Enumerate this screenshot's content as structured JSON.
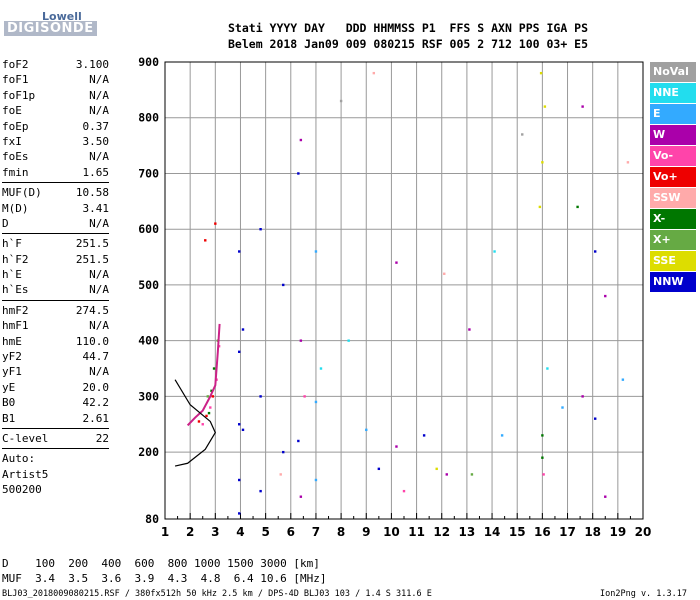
{
  "logo": {
    "top": "Lowell",
    "main": "DIGISONDE"
  },
  "header": {
    "line1": "Stati YYYY DAY   DDD HHMMSS P1  FFS S AXN PPS IGA PS",
    "line2": "Belem 2018 Jan09 009 080215 RSF 005 2 712 100 03+ E5"
  },
  "params": [
    {
      "name": "foF2",
      "value": "3.100"
    },
    {
      "name": "foF1",
      "value": "N/A"
    },
    {
      "name": "foF1p",
      "value": "N/A"
    },
    {
      "name": "foE",
      "value": "N/A"
    },
    {
      "name": "foEp",
      "value": "0.37"
    },
    {
      "name": "fxI",
      "value": "3.50"
    },
    {
      "name": "foEs",
      "value": "N/A"
    },
    {
      "name": "fmin",
      "value": "1.65"
    },
    {
      "sep": true
    },
    {
      "name": "MUF(D)",
      "value": "10.58"
    },
    {
      "name": "M(D)",
      "value": "3.41"
    },
    {
      "name": "D",
      "value": "N/A"
    },
    {
      "sep": true
    },
    {
      "name": "h`F",
      "value": "251.5"
    },
    {
      "name": "h`F2",
      "value": "251.5"
    },
    {
      "name": "h`E",
      "value": "N/A"
    },
    {
      "name": "h`Es",
      "value": "N/A"
    },
    {
      "sep": true
    },
    {
      "name": "hmF2",
      "value": "274.5"
    },
    {
      "name": "hmF1",
      "value": "N/A"
    },
    {
      "name": "hmE",
      "value": "110.0"
    },
    {
      "name": "yF2",
      "value": "44.7"
    },
    {
      "name": "yF1",
      "value": "N/A"
    },
    {
      "name": "yE",
      "value": "20.0"
    },
    {
      "name": "B0",
      "value": "42.2"
    },
    {
      "name": "B1",
      "value": "2.61"
    },
    {
      "sep": true
    },
    {
      "name": "C-level",
      "value": "22"
    },
    {
      "sep": true
    },
    {
      "text": "Auto:"
    },
    {
      "text": "Artist5"
    },
    {
      "text": "500200"
    }
  ],
  "legend": [
    {
      "label": "NoVal",
      "color": "#a0a0a0"
    },
    {
      "label": "NNE",
      "color": "#22ddee"
    },
    {
      "label": "E",
      "color": "#33aaff"
    },
    {
      "label": "W",
      "color": "#aa00aa"
    },
    {
      "label": "Vo-",
      "color": "#ff44aa"
    },
    {
      "label": "Vo+",
      "color": "#ee0000"
    },
    {
      "label": "SSW",
      "color": "#ffaaaa"
    },
    {
      "label": "X-",
      "color": "#007700"
    },
    {
      "label": "X+",
      "color": "#66aa44"
    },
    {
      "label": "SSE",
      "color": "#dddd00"
    },
    {
      "label": "NNW",
      "color": "#0000cc"
    }
  ],
  "muf_table": {
    "row1": "D    100  200  400  600  800 1000 1500 3000 [km]",
    "row2": "MUF  3.4  3.5  3.6  3.9  4.3  4.8  6.4 10.6 [MHz]"
  },
  "footer": {
    "left": "BLJ03_2018009080215.RSF / 380fx512h 50 kHz 2.5 km / DPS-4D BLJ03 103 / 1.4 S 311.6 E",
    "right": "Ion2Png v. 1.3.17"
  },
  "chart_data": {
    "type": "scatter",
    "title": "",
    "xlabel": "",
    "ylabel": "",
    "x_ticks": [
      "1",
      "2",
      "3",
      "4",
      "5",
      "6",
      "7",
      "8",
      "9",
      "10",
      "11",
      "12",
      "13",
      "14",
      "15",
      "16",
      "17",
      "18",
      "19",
      "20"
    ],
    "y_ticks": [
      "80",
      "200",
      "300",
      "400",
      "500",
      "600",
      "700",
      "800",
      "900"
    ],
    "xlim": [
      1,
      20
    ],
    "ylim": [
      80,
      900
    ],
    "grid": true,
    "series": [
      {
        "name": "NNW",
        "color": "#0000cc",
        "points": [
          [
            3.95,
            90
          ],
          [
            3.95,
            150
          ],
          [
            3.95,
            250
          ],
          [
            3.95,
            380
          ],
          [
            3.95,
            560
          ],
          [
            4.8,
            130
          ],
          [
            4.8,
            300
          ],
          [
            4.8,
            600
          ],
          [
            4.1,
            240
          ],
          [
            4.1,
            420
          ],
          [
            5.7,
            200
          ],
          [
            5.7,
            500
          ],
          [
            6.3,
            220
          ],
          [
            6.3,
            700
          ],
          [
            9.5,
            170
          ],
          [
            11.3,
            230
          ],
          [
            18.1,
            260
          ],
          [
            18.1,
            560
          ]
        ]
      },
      {
        "name": "W",
        "color": "#aa00aa",
        "points": [
          [
            6.4,
            120
          ],
          [
            6.4,
            400
          ],
          [
            6.4,
            760
          ],
          [
            10.2,
            210
          ],
          [
            10.2,
            540
          ],
          [
            12.2,
            160
          ],
          [
            13.1,
            420
          ],
          [
            17.6,
            300
          ],
          [
            17.6,
            820
          ],
          [
            18.5,
            120
          ],
          [
            18.5,
            480
          ]
        ]
      },
      {
        "name": "SSE",
        "color": "#dddd00",
        "points": [
          [
            15.9,
            640
          ],
          [
            16.0,
            720
          ],
          [
            16.1,
            820
          ],
          [
            15.95,
            880
          ],
          [
            11.8,
            170
          ]
        ]
      },
      {
        "name": "E",
        "color": "#33aaff",
        "points": [
          [
            7.0,
            150
          ],
          [
            7.0,
            290
          ],
          [
            7.0,
            560
          ],
          [
            9.0,
            240
          ],
          [
            14.4,
            230
          ],
          [
            16.8,
            280
          ],
          [
            19.2,
            330
          ]
        ]
      },
      {
        "name": "X-",
        "color": "#007700",
        "points": [
          [
            2.75,
            270
          ],
          [
            2.85,
            310
          ],
          [
            2.95,
            350
          ],
          [
            16.0,
            190
          ],
          [
            16.0,
            230
          ],
          [
            17.4,
            640
          ]
        ]
      },
      {
        "name": "Vo-",
        "color": "#ff44aa",
        "points": [
          [
            2.5,
            250
          ],
          [
            2.8,
            280
          ],
          [
            3.05,
            330
          ],
          [
            3.15,
            390
          ],
          [
            6.55,
            300
          ],
          [
            10.5,
            130
          ],
          [
            16.05,
            160
          ]
        ]
      },
      {
        "name": "Vo+",
        "color": "#ee0000",
        "points": [
          [
            2.35,
            255
          ],
          [
            2.65,
            265
          ],
          [
            2.9,
            300
          ],
          [
            2.6,
            580
          ],
          [
            3.0,
            610
          ]
        ]
      },
      {
        "name": "NNE",
        "color": "#22ddee",
        "points": [
          [
            7.2,
            350
          ],
          [
            8.3,
            400
          ],
          [
            14.1,
            560
          ],
          [
            16.2,
            350
          ]
        ]
      },
      {
        "name": "SSW",
        "color": "#ffaaaa",
        "points": [
          [
            5.6,
            160
          ],
          [
            9.3,
            880
          ],
          [
            12.1,
            520
          ],
          [
            19.4,
            720
          ]
        ]
      },
      {
        "name": "X+",
        "color": "#66aa44",
        "points": [
          [
            2.7,
            300
          ],
          [
            3.1,
            400
          ],
          [
            13.2,
            160
          ]
        ]
      },
      {
        "name": "NoVal",
        "color": "#a0a0a0",
        "points": [
          [
            8.0,
            830
          ],
          [
            15.2,
            770
          ]
        ]
      }
    ],
    "profile_curve": [
      [
        1.9,
        248
      ],
      [
        2.2,
        262
      ],
      [
        2.5,
        274.5
      ],
      [
        2.8,
        300
      ],
      [
        3.0,
        320
      ],
      [
        3.1,
        380
      ],
      [
        3.17,
        430
      ]
    ],
    "model_curve": [
      [
        1.4,
        330
      ],
      [
        2.0,
        285
      ],
      [
        2.8,
        255
      ],
      [
        3.0,
        235
      ],
      [
        2.6,
        205
      ],
      [
        1.9,
        180
      ],
      [
        1.4,
        175
      ]
    ]
  }
}
